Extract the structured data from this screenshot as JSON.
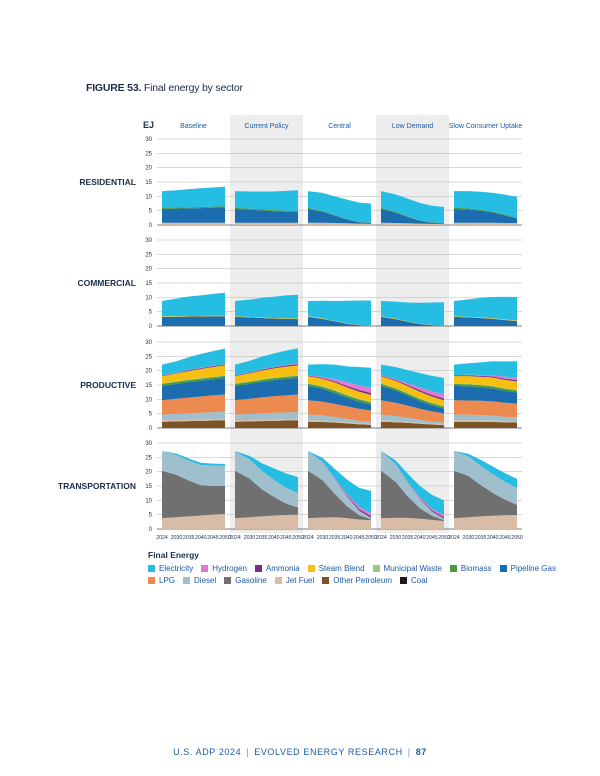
{
  "figure": {
    "label": "FIGURE 53.",
    "title": "Final energy by sector"
  },
  "footer": {
    "doc": "U.S. ADP 2024",
    "org": "EVOLVED ENERGY RESEARCH",
    "page": "87"
  },
  "legend_title": "Final Energy",
  "chart_data": {
    "type": "area",
    "stacked": true,
    "unit": "EJ",
    "x": [
      2024,
      2030,
      2035,
      2040,
      2045,
      2050
    ],
    "x_tick_labels": [
      "2024",
      "2030",
      "2035",
      "2040",
      "2045",
      "2050"
    ],
    "ylim": [
      0,
      30
    ],
    "yticks": [
      "0",
      "5",
      "10",
      "15",
      "20",
      "25",
      "30"
    ],
    "scenarios": [
      "Baseline",
      "Current Policy",
      "Central",
      "Low Demand",
      "Slow Consumer Uptake"
    ],
    "highlighted_scenarios": [
      "Current Policy",
      "Low Demand"
    ],
    "sectors": [
      "RESIDENTIAL",
      "COMMERCIAL",
      "PRODUCTIVE",
      "TRANSPORTATION"
    ],
    "fuels": [
      {
        "name": "Electricity",
        "color": "#26bde2"
      },
      {
        "name": "Hydrogen",
        "color": "#e07ad0"
      },
      {
        "name": "Ammonia",
        "color": "#7b2c8e"
      },
      {
        "name": "Steam Blend",
        "color": "#f5c012"
      },
      {
        "name": "Municipal Waste",
        "color": "#96cc7b"
      },
      {
        "name": "Biomass",
        "color": "#4b9a3c"
      },
      {
        "name": "Pipeline Gas",
        "color": "#1b6db0"
      },
      {
        "name": "LPG",
        "color": "#ec8a4f"
      },
      {
        "name": "Diesel",
        "color": "#9fbfcc"
      },
      {
        "name": "Gasoline",
        "color": "#707070"
      },
      {
        "name": "Jet Fuel",
        "color": "#d9bca6"
      },
      {
        "name": "Other Petroleum",
        "color": "#7d5224"
      },
      {
        "name": "Coal",
        "color": "#1a1a1a"
      }
    ],
    "data": {
      "RESIDENTIAL": {
        "Baseline": {
          "Jet Fuel": [
            0.8,
            0.8,
            0.8,
            0.8,
            0.8,
            0.8
          ],
          "Pipeline Gas": [
            4.8,
            4.9,
            5.0,
            5.1,
            5.2,
            5.4
          ],
          "Biomass": [
            0.4,
            0.4,
            0.4,
            0.4,
            0.4,
            0.4
          ],
          "Electricity": [
            5.8,
            6.0,
            6.3,
            6.5,
            6.7,
            6.8
          ]
        },
        "Current Policy": {
          "Jet Fuel": [
            0.8,
            0.8,
            0.8,
            0.8,
            0.8,
            0.8
          ],
          "Pipeline Gas": [
            4.8,
            4.5,
            4.3,
            4.0,
            3.8,
            3.7
          ],
          "Biomass": [
            0.4,
            0.4,
            0.4,
            0.4,
            0.4,
            0.4
          ],
          "Electricity": [
            5.8,
            6.0,
            6.2,
            6.5,
            6.9,
            7.2
          ]
        },
        "Central": {
          "Jet Fuel": [
            0.8,
            0.8,
            0.7,
            0.6,
            0.5,
            0.4
          ],
          "Pipeline Gas": [
            4.8,
            3.8,
            2.6,
            1.3,
            0.5,
            0.3
          ],
          "Biomass": [
            0.4,
            0.3,
            0.2,
            0.2,
            0.1,
            0.1
          ],
          "Electricity": [
            5.8,
            6.3,
            6.5,
            6.8,
            6.7,
            6.7
          ]
        },
        "Low Demand": {
          "Jet Fuel": [
            0.8,
            0.7,
            0.6,
            0.5,
            0.4,
            0.3
          ],
          "Pipeline Gas": [
            4.8,
            3.6,
            2.2,
            1.0,
            0.4,
            0.2
          ],
          "Biomass": [
            0.4,
            0.3,
            0.2,
            0.1,
            0.1,
            0.1
          ],
          "Electricity": [
            5.8,
            6.1,
            6.2,
            6.1,
            5.8,
            5.7
          ]
        },
        "Slow Consumer Uptake": {
          "Jet Fuel": [
            0.8,
            0.8,
            0.8,
            0.8,
            0.7,
            0.7
          ],
          "Pipeline Gas": [
            4.8,
            4.6,
            4.2,
            3.6,
            2.7,
            1.6
          ],
          "Biomass": [
            0.4,
            0.4,
            0.3,
            0.3,
            0.3,
            0.2
          ],
          "Electricity": [
            5.8,
            6.0,
            6.3,
            6.5,
            6.9,
            7.3
          ]
        }
      },
      "COMMERCIAL": {
        "Baseline": {
          "Pipeline Gas": [
            3.2,
            3.2,
            3.3,
            3.3,
            3.4,
            3.4
          ],
          "Steam Blend": [
            0.2,
            0.2,
            0.2,
            0.2,
            0.2,
            0.2
          ],
          "Electricity": [
            5.3,
            6.2,
            6.8,
            7.2,
            7.6,
            8.0
          ]
        },
        "Current Policy": {
          "Pipeline Gas": [
            3.2,
            3.0,
            2.8,
            2.6,
            2.5,
            2.4
          ],
          "Steam Blend": [
            0.2,
            0.2,
            0.2,
            0.2,
            0.2,
            0.2
          ],
          "Electricity": [
            5.3,
            6.0,
            6.8,
            7.4,
            8.0,
            8.3
          ]
        },
        "Central": {
          "Pipeline Gas": [
            3.2,
            2.5,
            1.6,
            0.8,
            0.3,
            0.1
          ],
          "Steam Blend": [
            0.2,
            0.2,
            0.1,
            0.1,
            0.1,
            0.1
          ],
          "Electricity": [
            5.3,
            6.1,
            7.0,
            7.9,
            8.5,
            8.7
          ]
        },
        "Low Demand": {
          "Pipeline Gas": [
            3.2,
            2.4,
            1.5,
            0.7,
            0.3,
            0.1
          ],
          "Steam Blend": [
            0.2,
            0.2,
            0.1,
            0.1,
            0.1,
            0.1
          ],
          "Electricity": [
            5.3,
            5.9,
            6.6,
            7.3,
            7.8,
            8.1
          ]
        },
        "Slow Consumer Uptake": {
          "Pipeline Gas": [
            3.2,
            3.0,
            2.8,
            2.5,
            2.1,
            1.7
          ],
          "Steam Blend": [
            0.2,
            0.2,
            0.2,
            0.2,
            0.2,
            0.2
          ],
          "Electricity": [
            5.3,
            6.1,
            6.8,
            7.4,
            7.9,
            8.2
          ]
        }
      },
      "PRODUCTIVE": {
        "Baseline": {
          "Other Petroleum": [
            2.2,
            2.3,
            2.4,
            2.5,
            2.6,
            2.7
          ],
          "Jet Fuel": [
            0.5,
            0.5,
            0.5,
            0.5,
            0.5,
            0.5
          ],
          "Diesel": [
            2.0,
            2.1,
            2.2,
            2.3,
            2.4,
            2.5
          ],
          "LPG": [
            5.0,
            5.3,
            5.5,
            5.7,
            5.9,
            6.0
          ],
          "Pipeline Gas": [
            5.0,
            5.2,
            5.4,
            5.5,
            5.6,
            5.8
          ],
          "Biomass": [
            0.7,
            0.7,
            0.7,
            0.7,
            0.7,
            0.7
          ],
          "Steam Blend": [
            2.5,
            2.7,
            3.0,
            3.2,
            3.4,
            3.5
          ],
          "Municipal Waste": [
            0.2,
            0.2,
            0.2,
            0.2,
            0.2,
            0.2
          ],
          "Ammonia": [
            0.2,
            0.2,
            0.3,
            0.3,
            0.3,
            0.3
          ],
          "Hydrogen": [
            0.1,
            0.1,
            0.1,
            0.1,
            0.1,
            0.1
          ],
          "Electricity": [
            3.7,
            4.0,
            4.4,
            4.8,
            5.1,
            5.4
          ]
        },
        "Current Policy": {
          "Other Petroleum": [
            2.2,
            2.3,
            2.4,
            2.5,
            2.6,
            2.7
          ],
          "Jet Fuel": [
            0.5,
            0.5,
            0.5,
            0.5,
            0.5,
            0.5
          ],
          "Diesel": [
            2.0,
            2.1,
            2.2,
            2.3,
            2.3,
            2.4
          ],
          "LPG": [
            5.0,
            5.3,
            5.6,
            5.8,
            6.0,
            6.1
          ],
          "Pipeline Gas": [
            5.0,
            5.2,
            5.4,
            5.6,
            5.7,
            5.8
          ],
          "Biomass": [
            0.7,
            0.7,
            0.7,
            0.7,
            0.7,
            0.7
          ],
          "Steam Blend": [
            2.5,
            2.8,
            3.0,
            3.2,
            3.4,
            3.5
          ],
          "Municipal Waste": [
            0.2,
            0.2,
            0.2,
            0.2,
            0.2,
            0.2
          ],
          "Ammonia": [
            0.2,
            0.2,
            0.3,
            0.3,
            0.4,
            0.4
          ],
          "Hydrogen": [
            0.1,
            0.1,
            0.2,
            0.2,
            0.2,
            0.2
          ],
          "Electricity": [
            3.7,
            4.0,
            4.4,
            4.7,
            5.0,
            5.3
          ]
        },
        "Central": {
          "Other Petroleum": [
            2.2,
            2.1,
            1.9,
            1.6,
            1.3,
            1.1
          ],
          "Jet Fuel": [
            0.5,
            0.5,
            0.4,
            0.4,
            0.3,
            0.3
          ],
          "Diesel": [
            2.0,
            1.8,
            1.5,
            1.2,
            0.9,
            0.7
          ],
          "LPG": [
            5.0,
            4.8,
            4.6,
            4.4,
            4.2,
            4.0
          ],
          "Pipeline Gas": [
            5.0,
            4.5,
            3.8,
            3.0,
            2.5,
            2.0
          ],
          "Biomass": [
            0.7,
            0.7,
            0.8,
            0.8,
            0.8,
            0.8
          ],
          "Steam Blend": [
            2.5,
            2.6,
            2.6,
            2.5,
            2.4,
            2.3
          ],
          "Municipal Waste": [
            0.2,
            0.2,
            0.3,
            0.3,
            0.3,
            0.3
          ],
          "Ammonia": [
            0.2,
            0.3,
            0.4,
            0.5,
            0.6,
            0.7
          ],
          "Hydrogen": [
            0.1,
            0.3,
            0.8,
            1.3,
            1.6,
            1.8
          ],
          "Electricity": [
            3.7,
            4.5,
            5.0,
            5.5,
            6.4,
            7.0
          ]
        },
        "Low Demand": {
          "Other Petroleum": [
            2.2,
            2.0,
            1.8,
            1.5,
            1.2,
            1.0
          ],
          "Jet Fuel": [
            0.5,
            0.5,
            0.4,
            0.3,
            0.3,
            0.3
          ],
          "Diesel": [
            2.0,
            1.7,
            1.4,
            1.1,
            0.8,
            0.6
          ],
          "LPG": [
            5.0,
            4.6,
            4.2,
            3.8,
            3.5,
            3.2
          ],
          "Pipeline Gas": [
            5.0,
            4.3,
            3.5,
            2.7,
            2.1,
            1.6
          ],
          "Biomass": [
            0.7,
            0.7,
            0.7,
            0.7,
            0.7,
            0.7
          ],
          "Steam Blend": [
            2.5,
            2.5,
            2.4,
            2.3,
            2.1,
            2.0
          ],
          "Municipal Waste": [
            0.2,
            0.2,
            0.2,
            0.3,
            0.3,
            0.3
          ],
          "Ammonia": [
            0.2,
            0.3,
            0.4,
            0.5,
            0.5,
            0.6
          ],
          "Hydrogen": [
            0.1,
            0.3,
            0.6,
            1.0,
            1.3,
            1.5
          ],
          "Electricity": [
            3.7,
            4.2,
            4.6,
            5.0,
            5.4,
            5.7
          ]
        },
        "Slow Consumer Uptake": {
          "Other Petroleum": [
            2.2,
            2.2,
            2.2,
            2.1,
            2.0,
            1.9
          ],
          "Jet Fuel": [
            0.5,
            0.5,
            0.5,
            0.5,
            0.4,
            0.4
          ],
          "Diesel": [
            2.0,
            1.9,
            1.8,
            1.7,
            1.5,
            1.4
          ],
          "LPG": [
            5.0,
            5.0,
            5.0,
            5.0,
            4.9,
            4.8
          ],
          "Pipeline Gas": [
            5.0,
            4.9,
            4.7,
            4.5,
            4.2,
            3.9
          ],
          "Biomass": [
            0.7,
            0.7,
            0.7,
            0.7,
            0.7,
            0.7
          ],
          "Steam Blend": [
            2.5,
            2.7,
            2.8,
            2.9,
            2.9,
            2.9
          ],
          "Municipal Waste": [
            0.2,
            0.2,
            0.2,
            0.2,
            0.2,
            0.2
          ],
          "Ammonia": [
            0.2,
            0.3,
            0.3,
            0.4,
            0.4,
            0.5
          ],
          "Hydrogen": [
            0.1,
            0.2,
            0.3,
            0.5,
            0.7,
            0.9
          ],
          "Electricity": [
            3.7,
            4.0,
            4.4,
            4.8,
            5.3,
            5.7
          ]
        }
      },
      "TRANSPORTATION": {
        "Baseline": {
          "Jet Fuel": [
            3.8,
            4.1,
            4.4,
            4.7,
            5.0,
            5.2
          ],
          "Gasoline": [
            16.5,
            14.8,
            12.5,
            10.6,
            10.0,
            9.8
          ],
          "Diesel": [
            6.8,
            6.9,
            6.9,
            7.0,
            7.1,
            7.0
          ],
          "Electricity": [
            0.1,
            0.5,
            0.8,
            0.8,
            0.7,
            0.7
          ]
        },
        "Current Policy": {
          "Jet Fuel": [
            3.8,
            4.1,
            4.4,
            4.7,
            4.9,
            5.0
          ],
          "Gasoline": [
            16.5,
            13.5,
            9.5,
            6.5,
            4.0,
            2.5
          ],
          "Diesel": [
            6.8,
            6.7,
            6.5,
            6.0,
            5.5,
            5.0
          ],
          "Electricity": [
            0.1,
            1.2,
            2.6,
            4.0,
            5.0,
            5.6
          ]
        },
        "Central": {
          "Jet Fuel": [
            3.8,
            4.0,
            4.1,
            3.8,
            3.3,
            3.0
          ],
          "Gasoline": [
            16.5,
            13.0,
            8.2,
            4.2,
            1.6,
            0.4
          ],
          "Diesel": [
            6.8,
            6.3,
            5.2,
            3.5,
            1.6,
            0.5
          ],
          "Ammonia": [
            0.0,
            0.0,
            0.1,
            0.3,
            0.5,
            0.6
          ],
          "Hydrogen": [
            0.0,
            0.1,
            0.2,
            0.5,
            0.8,
            1.0
          ],
          "Electricity": [
            0.1,
            1.4,
            3.2,
            5.0,
            6.6,
            7.8
          ]
        },
        "Low Demand": {
          "Jet Fuel": [
            3.8,
            3.9,
            3.9,
            3.6,
            3.2,
            2.8
          ],
          "Gasoline": [
            16.5,
            12.6,
            7.5,
            3.7,
            1.4,
            0.3
          ],
          "Diesel": [
            6.8,
            6.1,
            4.8,
            3.2,
            1.5,
            0.5
          ],
          "Ammonia": [
            0.0,
            0.0,
            0.1,
            0.2,
            0.4,
            0.5
          ],
          "Hydrogen": [
            0.0,
            0.1,
            0.2,
            0.4,
            0.6,
            0.8
          ],
          "Electricity": [
            0.1,
            1.3,
            2.8,
            4.0,
            4.8,
            5.1
          ]
        },
        "Slow Consumer Uptake": {
          "Jet Fuel": [
            3.8,
            4.1,
            4.4,
            4.6,
            4.8,
            4.9
          ],
          "Gasoline": [
            16.5,
            14.4,
            11.0,
            8.0,
            5.5,
            3.5
          ],
          "Diesel": [
            6.8,
            6.8,
            6.7,
            6.5,
            6.2,
            5.9
          ],
          "Electricity": [
            0.1,
            0.9,
            2.0,
            2.7,
            3.0,
            3.2
          ]
        }
      }
    }
  }
}
